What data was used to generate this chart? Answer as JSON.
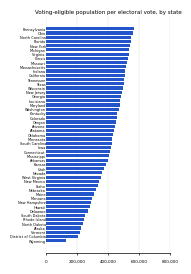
{
  "title": "Voting-eligible population per electoral vote, by state",
  "states": [
    "Pennsylvania",
    "Ohio",
    "North Carolina",
    "Florida",
    "New York",
    "Michigan",
    "Virginia",
    "Illinois",
    "Missouri",
    "Massachusetts",
    "Indiana",
    "California",
    "Tennessee",
    "Texas",
    "Wisconsin",
    "New Jersey",
    "Georgia",
    "Louisiana",
    "Maryland",
    "Washington",
    "Kentucky",
    "Colorado",
    "Oregon",
    "Arizona",
    "Alabama",
    "Oklahoma",
    "Minnesota",
    "South Carolina",
    "Iowa",
    "Connecticut",
    "Mississippi",
    "Arkansas",
    "Kansas",
    "Utah",
    "Nevada",
    "West Virginia",
    "New Mexico",
    "Idaho",
    "Nebraska",
    "Maine",
    "Montana",
    "New Hampshire",
    "Hawaii",
    "Delaware",
    "South Dakota",
    "Rhode Island",
    "North Dakota",
    "Alaska",
    "Vermont",
    "District of Columbia",
    "Wyoming"
  ],
  "values": [
    570000,
    560000,
    550000,
    548000,
    543000,
    538000,
    532000,
    528000,
    522000,
    515000,
    510000,
    507000,
    503000,
    500000,
    496000,
    491000,
    486000,
    478000,
    474000,
    468000,
    460000,
    456000,
    450000,
    446000,
    438000,
    433000,
    428000,
    423000,
    416000,
    410000,
    403000,
    396000,
    383000,
    372000,
    362000,
    352000,
    342000,
    332000,
    322000,
    308000,
    298000,
    290000,
    283000,
    272000,
    252000,
    246000,
    236000,
    223000,
    218000,
    203000,
    125000
  ],
  "bar_color": "#2255cc",
  "background_color": "#ffffff",
  "xlim": [
    0,
    800000
  ],
  "xticks": [
    0,
    200000,
    400000,
    600000,
    800000
  ],
  "title_fontsize": 4.0,
  "bar_height": 0.75,
  "label_fontsize": 2.5,
  "tick_fontsize": 3.0
}
